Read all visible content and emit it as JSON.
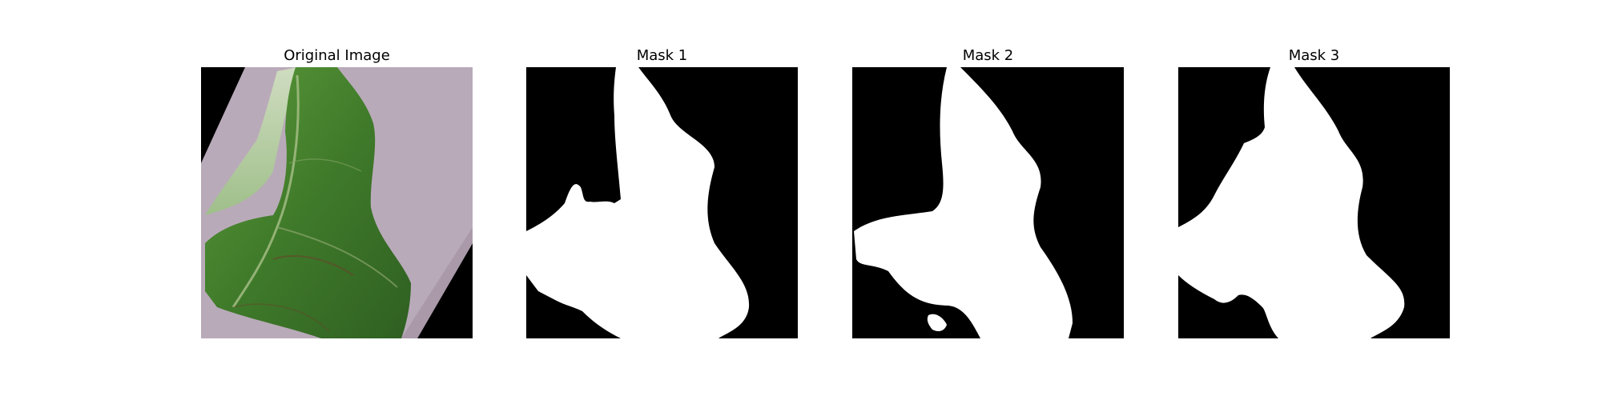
{
  "figure": {
    "panels": [
      {
        "title": "Original Image"
      },
      {
        "title": "Mask 1"
      },
      {
        "title": "Mask 2"
      },
      {
        "title": "Mask 3"
      }
    ]
  },
  "colors": {
    "background": "#ffffff",
    "mask_fg": "#ffffff",
    "mask_bg": "#000000",
    "leaf_green": "#3f7a2a",
    "surface": "#b8a9b8"
  }
}
